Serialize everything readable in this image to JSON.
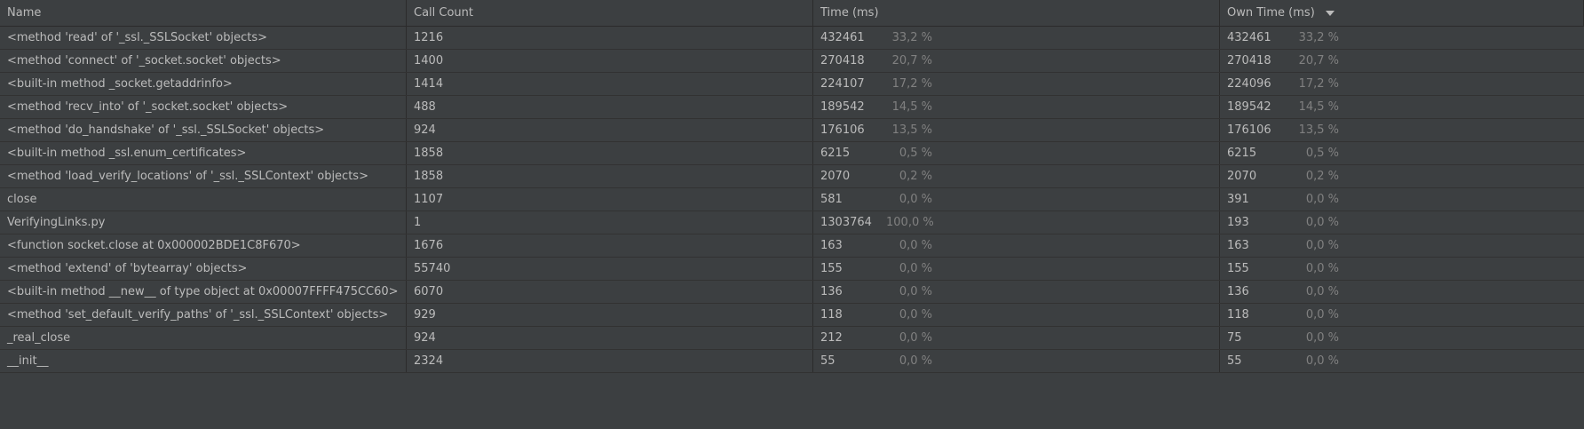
{
  "columns": {
    "name": "Name",
    "call_count": "Call Count",
    "time": "Time (ms)",
    "own_time": "Own Time (ms)",
    "sort_icon": "chevron-down-icon"
  },
  "rows": [
    {
      "name": "<method 'read' of '_ssl._SSLSocket' objects>",
      "count": "1216",
      "time": "432461",
      "time_pct": "33,2 %",
      "own": "432461",
      "own_pct": "33,2 %"
    },
    {
      "name": "<method 'connect' of '_socket.socket' objects>",
      "count": "1400",
      "time": "270418",
      "time_pct": "20,7 %",
      "own": "270418",
      "own_pct": "20,7 %"
    },
    {
      "name": "<built-in method _socket.getaddrinfo>",
      "count": "1414",
      "time": "224107",
      "time_pct": "17,2 %",
      "own": "224096",
      "own_pct": "17,2 %"
    },
    {
      "name": "<method 'recv_into' of '_socket.socket' objects>",
      "count": "488",
      "time": "189542",
      "time_pct": "14,5 %",
      "own": "189542",
      "own_pct": "14,5 %"
    },
    {
      "name": "<method 'do_handshake' of '_ssl._SSLSocket' objects>",
      "count": "924",
      "time": "176106",
      "time_pct": "13,5 %",
      "own": "176106",
      "own_pct": "13,5 %"
    },
    {
      "name": "<built-in method _ssl.enum_certificates>",
      "count": "1858",
      "time": "6215",
      "time_pct": "0,5 %",
      "own": "6215",
      "own_pct": "0,5 %"
    },
    {
      "name": "<method 'load_verify_locations' of '_ssl._SSLContext' objects>",
      "count": "1858",
      "time": "2070",
      "time_pct": "0,2 %",
      "own": "2070",
      "own_pct": "0,2 %"
    },
    {
      "name": "close",
      "count": "1107",
      "time": "581",
      "time_pct": "0,0 %",
      "own": "391",
      "own_pct": "0,0 %"
    },
    {
      "name": "VerifyingLinks.py",
      "count": "1",
      "time": "1303764",
      "time_pct": "100,0 %",
      "own": "193",
      "own_pct": "0,0 %"
    },
    {
      "name": "<function socket.close at 0x000002BDE1C8F670>",
      "count": "1676",
      "time": "163",
      "time_pct": "0,0 %",
      "own": "163",
      "own_pct": "0,0 %"
    },
    {
      "name": "<method 'extend' of 'bytearray' objects>",
      "count": "55740",
      "time": "155",
      "time_pct": "0,0 %",
      "own": "155",
      "own_pct": "0,0 %"
    },
    {
      "name": "<built-in method __new__ of type object at 0x00007FFFF475CC60>",
      "count": "6070",
      "time": "136",
      "time_pct": "0,0 %",
      "own": "136",
      "own_pct": "0,0 %"
    },
    {
      "name": "<method 'set_default_verify_paths' of '_ssl._SSLContext' objects>",
      "count": "929",
      "time": "118",
      "time_pct": "0,0 %",
      "own": "118",
      "own_pct": "0,0 %"
    },
    {
      "name": "_real_close",
      "count": "924",
      "time": "212",
      "time_pct": "0,0 %",
      "own": "75",
      "own_pct": "0,0 %"
    },
    {
      "name": "__init__",
      "count": "2324",
      "time": "55",
      "time_pct": "0,0 %",
      "own": "55",
      "own_pct": "0,0 %"
    }
  ]
}
